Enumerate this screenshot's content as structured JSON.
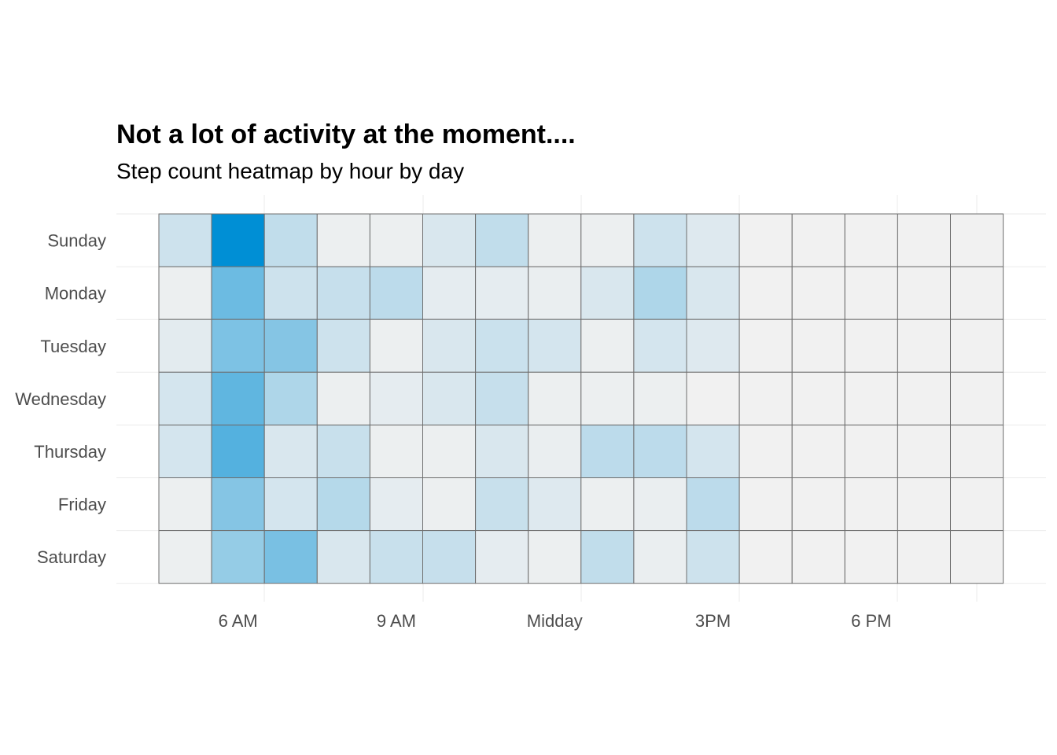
{
  "chart_data": {
    "type": "heatmap",
    "title": "Not a lot of activity at the moment....",
    "subtitle": "Step count heatmap by hour by day",
    "xlabel": "",
    "ylabel": "",
    "days": [
      "Sunday",
      "Monday",
      "Tuesday",
      "Wednesday",
      "Thursday",
      "Friday",
      "Saturday"
    ],
    "hours": [
      5,
      6,
      7,
      8,
      9,
      10,
      11,
      12,
      13,
      14,
      15,
      16,
      17,
      18,
      19,
      20
    ],
    "x_ticks": [
      {
        "hour": 6,
        "label": "6 AM"
      },
      {
        "hour": 9,
        "label": "9 AM"
      },
      {
        "hour": 12,
        "label": "Midday"
      },
      {
        "hour": 15,
        "label": "3PM"
      },
      {
        "hour": 18,
        "label": "6 PM"
      }
    ],
    "values": [
      [
        0.15,
        1.0,
        0.2,
        0.02,
        0.02,
        0.1,
        0.2,
        0.02,
        0.02,
        0.15,
        0.08,
        0.0,
        0.0,
        0.0,
        0.0,
        0.0
      ],
      [
        0.02,
        0.55,
        0.15,
        0.18,
        0.22,
        0.05,
        0.05,
        0.03,
        0.1,
        0.28,
        0.1,
        0.0,
        0.0,
        0.0,
        0.0,
        0.0
      ],
      [
        0.06,
        0.48,
        0.45,
        0.15,
        0.02,
        0.1,
        0.16,
        0.12,
        0.02,
        0.12,
        0.08,
        0.0,
        0.0,
        0.0,
        0.0,
        0.0
      ],
      [
        0.12,
        0.6,
        0.28,
        0.02,
        0.05,
        0.1,
        0.18,
        0.02,
        0.02,
        0.02,
        0.0,
        0.0,
        0.0,
        0.0,
        0.0,
        0.0
      ],
      [
        0.12,
        0.65,
        0.1,
        0.17,
        0.02,
        0.02,
        0.1,
        0.03,
        0.22,
        0.22,
        0.12,
        0.0,
        0.0,
        0.0,
        0.0,
        0.0
      ],
      [
        0.02,
        0.45,
        0.12,
        0.25,
        0.05,
        0.02,
        0.17,
        0.08,
        0.02,
        0.03,
        0.22,
        0.0,
        0.0,
        0.0,
        0.0,
        0.0
      ],
      [
        0.02,
        0.38,
        0.5,
        0.1,
        0.17,
        0.18,
        0.05,
        0.02,
        0.2,
        0.03,
        0.15,
        0.0,
        0.0,
        0.0,
        0.0,
        0.0
      ]
    ],
    "scale": {
      "low": "#f1f1f1",
      "high": "#008fd5"
    },
    "grid": true,
    "legend": "none"
  }
}
